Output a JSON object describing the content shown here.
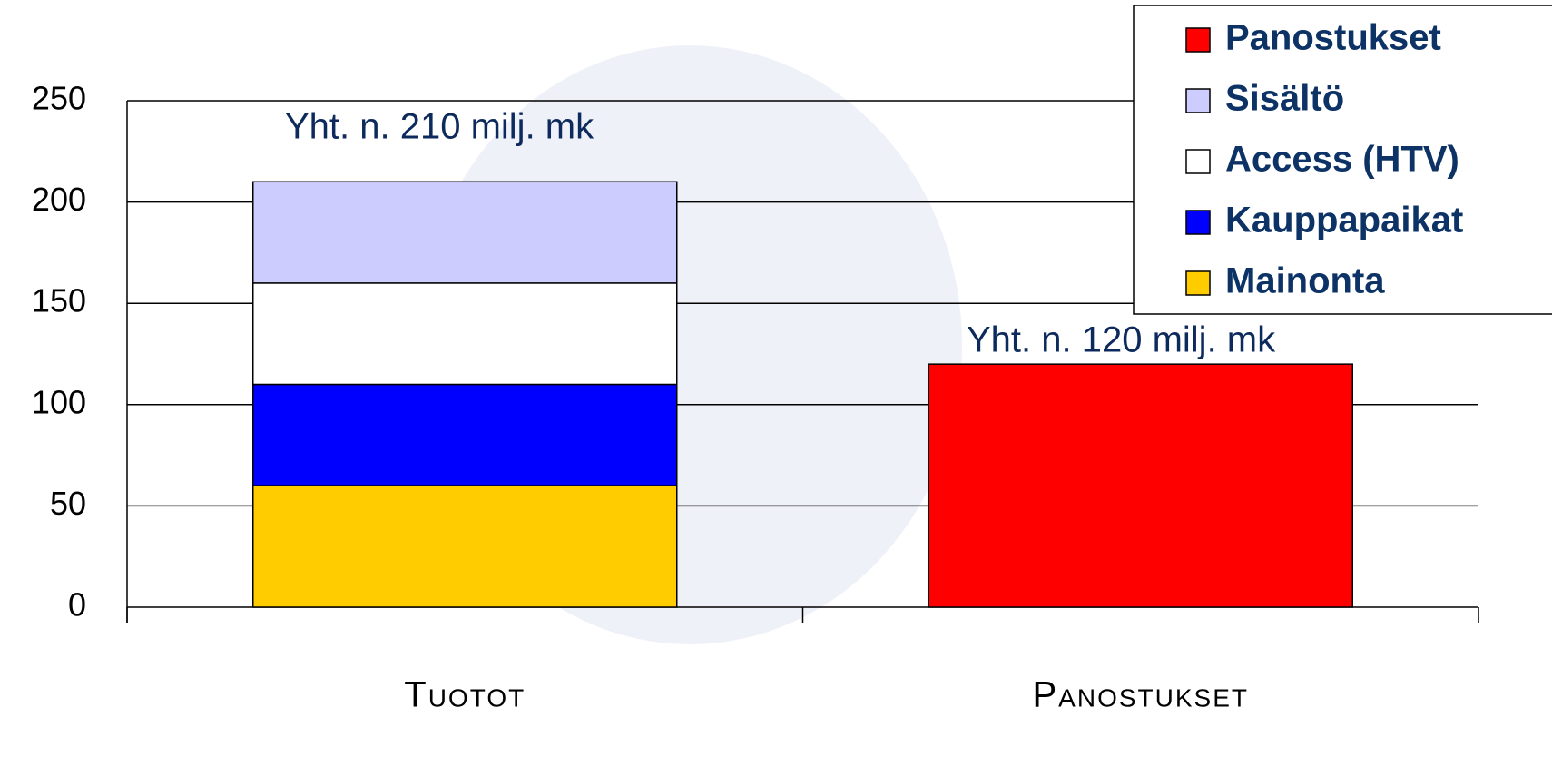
{
  "chart_data": {
    "type": "stacked_bar",
    "categories": [
      "Tuotot",
      "Panostukset"
    ],
    "series": [
      {
        "name": "Mainonta",
        "color": "#ffcc00",
        "values": [
          60,
          null
        ]
      },
      {
        "name": "Kauppapaikat",
        "color": "#0000ff",
        "values": [
          50,
          null
        ]
      },
      {
        "name": "Access (HTV)",
        "color": "#ffffff",
        "values": [
          50,
          null
        ]
      },
      {
        "name": "Sisältö",
        "color": "#ccccff",
        "values": [
          50,
          null
        ]
      },
      {
        "name": "Panostukset",
        "color": "#ff0000",
        "values": [
          null,
          120
        ]
      }
    ],
    "annotations": [
      "Yht. n. 210 milj. mk",
      "Yht. n. 120 milj. mk"
    ],
    "ylim": [
      0,
      250
    ],
    "yticks": [
      0,
      50,
      100,
      150,
      200,
      250
    ],
    "grid": true,
    "legend": "upper right"
  }
}
